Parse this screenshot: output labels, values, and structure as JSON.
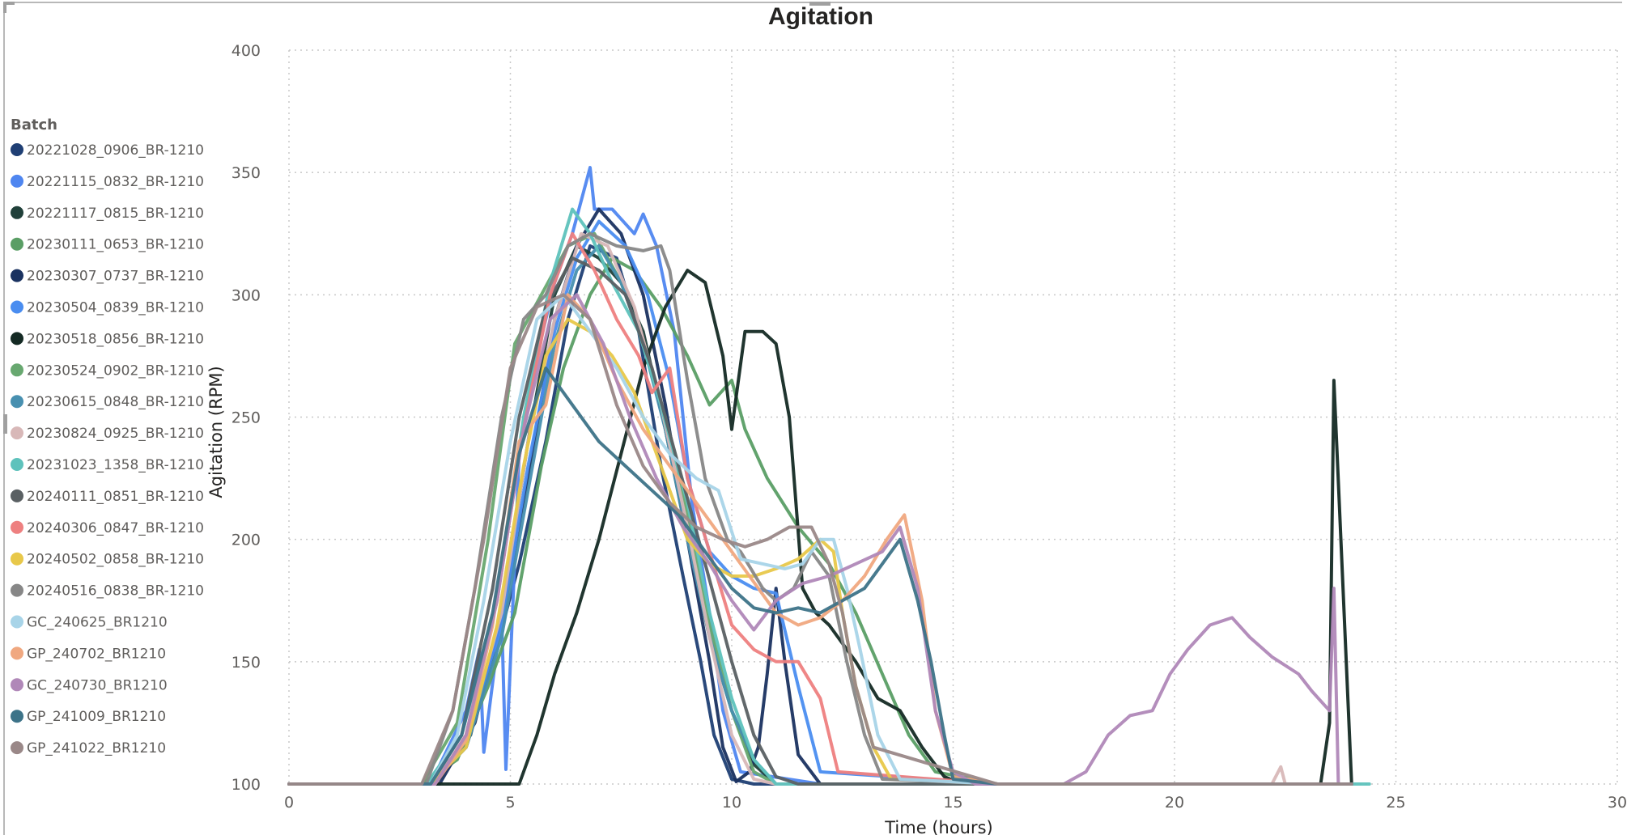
{
  "chart_data": {
    "type": "line",
    "title": "Agitation",
    "xlabel": "Time (hours)",
    "ylabel": "Agitation (RPM)",
    "xlim": [
      0,
      30
    ],
    "ylim": [
      100,
      400
    ],
    "xticks": [
      0,
      5,
      10,
      15,
      20,
      25,
      30
    ],
    "yticks": [
      100,
      150,
      200,
      250,
      300,
      350,
      400
    ],
    "grid": true,
    "legend_title": "Batch",
    "legend_position": "left",
    "series": [
      {
        "name": "20221028_0906_BR-1210",
        "color": "#1f3f74",
        "x": [
          0,
          3.2,
          4.0,
          4.6,
          5.2,
          5.8,
          6.3,
          6.8,
          7.4,
          7.9,
          8.4,
          8.9,
          9.3,
          9.6,
          10.0,
          10.5,
          11.0,
          12,
          16,
          24
        ],
        "y": [
          100,
          100,
          115,
          150,
          190,
          240,
          290,
          320,
          315,
          285,
          230,
          185,
          150,
          120,
          102,
          100,
          100,
          100,
          100,
          100
        ]
      },
      {
        "name": "20221115_0832_BR-1210",
        "color": "#4f86f0",
        "x": [
          0,
          3.2,
          4.0,
          4.3,
          4.4,
          4.8,
          4.9,
          5.2,
          5.6,
          6.0,
          6.4,
          6.8,
          6.9,
          7.3,
          7.8,
          8.0,
          8.3,
          8.7,
          9.1,
          9.5,
          9.8,
          10.2,
          12,
          16,
          24
        ],
        "y": [
          100,
          100,
          130,
          155,
          113,
          170,
          106,
          235,
          275,
          305,
          325,
          352,
          335,
          335,
          325,
          333,
          320,
          285,
          215,
          170,
          130,
          105,
          100,
          100,
          100
        ]
      },
      {
        "name": "20221117_0815_BR-1210",
        "color": "#20403a",
        "x": [
          0,
          3.3,
          4.1,
          4.8,
          5.4,
          6.0,
          6.5,
          7.0,
          7.5,
          8.0,
          8.5,
          9.0,
          9.5,
          10.0,
          10.5,
          11.0,
          11.5,
          12,
          16,
          24
        ],
        "y": [
          100,
          100,
          120,
          170,
          240,
          300,
          320,
          315,
          305,
          285,
          245,
          200,
          160,
          130,
          108,
          100,
          100,
          100,
          100,
          100
        ]
      },
      {
        "name": "20230111_0653_BR-1210",
        "color": "#5a9e65",
        "x": [
          0,
          3.0,
          3.8,
          4.5,
          5.1,
          5.7,
          6.2,
          6.8,
          7.3,
          7.8,
          8.4,
          9.0,
          9.5,
          10.0,
          10.3,
          10.8,
          11.5,
          12.2,
          12.8,
          13.4,
          14.0,
          14.6,
          16,
          24
        ],
        "y": [
          100,
          100,
          110,
          140,
          170,
          230,
          270,
          300,
          315,
          310,
          295,
          275,
          255,
          265,
          245,
          225,
          205,
          190,
          170,
          145,
          120,
          105,
          100,
          100
        ]
      },
      {
        "name": "20230307_0737_BR-1210",
        "color": "#1a3260",
        "x": [
          0,
          3.4,
          4.2,
          4.9,
          5.5,
          6.0,
          6.5,
          7.0,
          7.5,
          8.0,
          8.5,
          9.0,
          9.5,
          9.8,
          10.1,
          10.4,
          10.6,
          10.8,
          11.0,
          11.2,
          11.5,
          12,
          16,
          24
        ],
        "y": [
          100,
          100,
          125,
          175,
          235,
          290,
          320,
          335,
          325,
          300,
          255,
          200,
          150,
          115,
          101,
          105,
          115,
          145,
          180,
          150,
          112,
          100,
          100,
          100
        ]
      },
      {
        "name": "20230504_0839_BR-1210",
        "color": "#4a8df0",
        "x": [
          0,
          3.2,
          4.0,
          4.8,
          5.4,
          6.0,
          6.5,
          7.0,
          7.6,
          8.1,
          8.6,
          9.0,
          9.5,
          10.0,
          10.5,
          11.0,
          11.5,
          12,
          16,
          24
        ],
        "y": [
          100,
          100,
          118,
          165,
          230,
          285,
          315,
          330,
          320,
          300,
          265,
          225,
          195,
          185,
          180,
          178,
          140,
          105,
          100,
          100
        ]
      },
      {
        "name": "20230518_0856_BR-1210",
        "color": "#142a24",
        "x": [
          0,
          5.2,
          5.6,
          6.0,
          6.5,
          7.0,
          7.5,
          8.0,
          8.5,
          9.0,
          9.4,
          9.8,
          10.0,
          10.3,
          10.7,
          11.0,
          11.3,
          11.6,
          11.9,
          12.2,
          12.8,
          13.3,
          13.8,
          14.3,
          14.8,
          15.2,
          16,
          20,
          23.3,
          23.5,
          23.6,
          24
        ],
        "y": [
          100,
          100,
          120,
          145,
          170,
          200,
          235,
          270,
          295,
          310,
          305,
          275,
          245,
          285,
          285,
          280,
          250,
          180,
          170,
          165,
          150,
          135,
          130,
          115,
          103,
          100,
          100,
          100,
          100,
          125,
          265,
          100
        ]
      },
      {
        "name": "20230524_0902_BR-1210",
        "color": "#68a870",
        "x": [
          0,
          3.0,
          3.8,
          4.5,
          5.1,
          5.7,
          6.3,
          6.9,
          7.5,
          8.0,
          8.5,
          9.0,
          9.5,
          10.0,
          10.5,
          11.0,
          11.5,
          12,
          16,
          24
        ],
        "y": [
          100,
          100,
          125,
          200,
          280,
          300,
          320,
          325,
          305,
          280,
          250,
          210,
          165,
          130,
          105,
          100,
          100,
          100,
          100,
          100
        ]
      },
      {
        "name": "20230615_0848_BR-1210",
        "color": "#4890b0",
        "x": [
          0,
          3.2,
          4.0,
          4.8,
          5.4,
          6.0,
          6.5,
          7.0,
          7.5,
          8.0,
          8.5,
          9.0,
          9.5,
          10.0,
          10.5,
          11.0,
          11.5,
          12.2,
          16,
          24
        ],
        "y": [
          100,
          100,
          115,
          160,
          220,
          280,
          310,
          320,
          305,
          280,
          245,
          200,
          160,
          130,
          110,
          100,
          100,
          100,
          100,
          100
        ]
      },
      {
        "name": "20230824_0925_BR-1210",
        "color": "#d8b8b8",
        "x": [
          0,
          3.2,
          4.0,
          4.8,
          5.4,
          6.0,
          6.6,
          7.2,
          7.8,
          8.4,
          9.0,
          9.5,
          10.0,
          10.5,
          11.0,
          12,
          16,
          22.2,
          22.4,
          22.5,
          24
        ],
        "y": [
          100,
          100,
          118,
          170,
          240,
          290,
          325,
          320,
          295,
          255,
          205,
          160,
          120,
          102,
          100,
          100,
          100,
          100,
          107,
          100,
          100
        ]
      },
      {
        "name": "20231023_1358_BR-1210",
        "color": "#5ec2bc",
        "x": [
          0,
          3.1,
          3.9,
          4.7,
          5.3,
          5.9,
          6.4,
          6.8,
          7.3,
          7.9,
          8.4,
          9.0,
          9.5,
          10.0,
          10.5,
          11.0,
          11.5,
          12,
          16,
          24.4
        ],
        "y": [
          100,
          100,
          120,
          175,
          250,
          305,
          335,
          325,
          305,
          285,
          255,
          215,
          170,
          135,
          110,
          100,
          100,
          100,
          100,
          100
        ]
      },
      {
        "name": "20240111_0851_BR-1210",
        "color": "#5a6063",
        "x": [
          0,
          3.2,
          3.9,
          4.6,
          5.2,
          5.8,
          6.4,
          7.0,
          7.6,
          8.2,
          8.8,
          9.4,
          10.0,
          10.5,
          11.0,
          11.5,
          12,
          16,
          24
        ],
        "y": [
          100,
          100,
          120,
          180,
          250,
          295,
          315,
          310,
          300,
          270,
          230,
          190,
          150,
          120,
          103,
          100,
          100,
          100,
          100
        ]
      },
      {
        "name": "20240306_0847_BR-1210",
        "color": "#ee8080",
        "x": [
          0,
          3.3,
          4.0,
          4.7,
          5.3,
          5.9,
          6.4,
          6.9,
          7.4,
          7.9,
          8.2,
          8.6,
          9.0,
          9.5,
          10.0,
          10.5,
          11.0,
          11.5,
          12.0,
          12.4,
          16,
          24
        ],
        "y": [
          100,
          100,
          120,
          175,
          245,
          300,
          325,
          310,
          290,
          275,
          260,
          270,
          225,
          195,
          165,
          155,
          150,
          150,
          135,
          105,
          100,
          100
        ]
      },
      {
        "name": "20240502_0858_BR-1210",
        "color": "#e8c84a",
        "x": [
          0,
          3.2,
          4.0,
          4.7,
          5.3,
          5.8,
          6.3,
          6.8,
          7.3,
          7.8,
          8.4,
          9.0,
          9.5,
          10.0,
          10.5,
          11.0,
          11.5,
          12.0,
          12.3,
          12.5,
          12.8,
          13.2,
          13.6,
          16,
          24
        ],
        "y": [
          100,
          100,
          115,
          165,
          230,
          275,
          290,
          285,
          275,
          260,
          230,
          200,
          190,
          185,
          185,
          188,
          192,
          200,
          195,
          170,
          140,
          115,
          102,
          100,
          100
        ]
      },
      {
        "name": "20240516_0838_BR-1210",
        "color": "#878787",
        "x": [
          0,
          3.1,
          3.7,
          4.2,
          4.8,
          5.3,
          5.8,
          6.3,
          6.8,
          7.4,
          8.0,
          8.4,
          8.6,
          9.0,
          9.4,
          9.9,
          10.2,
          10.7,
          11.0,
          11.4,
          11.8,
          12.2,
          12.6,
          13.0,
          13.4,
          16,
          24
        ],
        "y": [
          100,
          100,
          130,
          180,
          250,
          290,
          300,
          320,
          325,
          320,
          318,
          320,
          310,
          265,
          225,
          200,
          195,
          180,
          175,
          180,
          195,
          185,
          150,
          120,
          102,
          100,
          100
        ]
      },
      {
        "name": "GC_240625_BR1210",
        "color": "#a8d4e8",
        "x": [
          0,
          3.2,
          3.8,
          4.4,
          5.0,
          5.6,
          6.2,
          6.8,
          7.4,
          8.0,
          8.6,
          9.2,
          9.7,
          10.2,
          10.7,
          11.2,
          11.6,
          12.0,
          12.3,
          12.6,
          12.9,
          13.3,
          13.8,
          16,
          24
        ],
        "y": [
          100,
          100,
          120,
          175,
          240,
          290,
          300,
          285,
          270,
          250,
          235,
          225,
          220,
          192,
          190,
          188,
          190,
          200,
          200,
          180,
          155,
          120,
          102,
          100,
          100
        ]
      },
      {
        "name": "GP_240702_BR1210",
        "color": "#f0a880",
        "x": [
          0,
          3.3,
          4.0,
          4.6,
          5.2,
          5.8,
          6.3,
          6.8,
          7.4,
          8.0,
          8.6,
          9.2,
          9.8,
          10.4,
          11.0,
          11.5,
          12.0,
          12.5,
          13.0,
          13.5,
          13.9,
          14.3,
          14.6,
          15.0,
          16,
          24
        ],
        "y": [
          100,
          100,
          118,
          165,
          240,
          255,
          300,
          290,
          265,
          245,
          230,
          215,
          200,
          185,
          170,
          165,
          168,
          175,
          185,
          200,
          210,
          175,
          130,
          103,
          100,
          100
        ]
      },
      {
        "name": "GC_240730_BR1210",
        "color": "#b088b8",
        "x": [
          0,
          3.3,
          4.0,
          4.7,
          5.3,
          5.9,
          6.5,
          7.1,
          7.7,
          8.3,
          8.9,
          9.5,
          10.0,
          10.5,
          11.0,
          11.6,
          12.2,
          12.8,
          13.4,
          13.8,
          14.2,
          14.6,
          15.0,
          15.5,
          17.5,
          18,
          18.5,
          19,
          19.5,
          19.9,
          20.3,
          20.8,
          21.3,
          21.7,
          22.2,
          22.8,
          23.1,
          23.4,
          23.5,
          23.6,
          23.7,
          24
        ],
        "y": [
          100,
          100,
          120,
          175,
          245,
          290,
          300,
          280,
          250,
          225,
          205,
          190,
          175,
          163,
          175,
          182,
          185,
          190,
          195,
          205,
          180,
          130,
          105,
          100,
          100,
          105,
          120,
          128,
          130,
          145,
          155,
          165,
          168,
          160,
          152,
          145,
          138,
          132,
          130,
          180,
          100,
          100
        ]
      },
      {
        "name": "GP_241009_BR1210",
        "color": "#3d7388",
        "x": [
          0,
          3.2,
          3.9,
          4.6,
          5.2,
          5.8,
          6.4,
          7.0,
          7.6,
          8.2,
          8.8,
          9.4,
          10.0,
          10.5,
          11.0,
          11.5,
          12.0,
          12.5,
          13.0,
          13.4,
          13.8,
          14.2,
          14.5,
          14.8,
          15.0,
          16,
          24
        ],
        "y": [
          100,
          100,
          120,
          170,
          235,
          270,
          255,
          240,
          230,
          220,
          210,
          195,
          180,
          172,
          170,
          172,
          170,
          175,
          180,
          190,
          200,
          175,
          150,
          120,
          102,
          100,
          100
        ]
      },
      {
        "name": "GP_241022_BR1210",
        "color": "#9a8888",
        "x": [
          0,
          3.0,
          3.7,
          4.4,
          5.0,
          5.6,
          6.2,
          6.8,
          7.4,
          8.0,
          8.6,
          9.2,
          9.8,
          10.3,
          10.8,
          11.3,
          11.8,
          12.2,
          12.5,
          12.8,
          13.2,
          16,
          24
        ],
        "y": [
          100,
          100,
          130,
          200,
          270,
          295,
          300,
          290,
          255,
          230,
          215,
          205,
          200,
          197,
          200,
          205,
          205,
          190,
          170,
          140,
          115,
          100,
          100
        ]
      }
    ]
  }
}
